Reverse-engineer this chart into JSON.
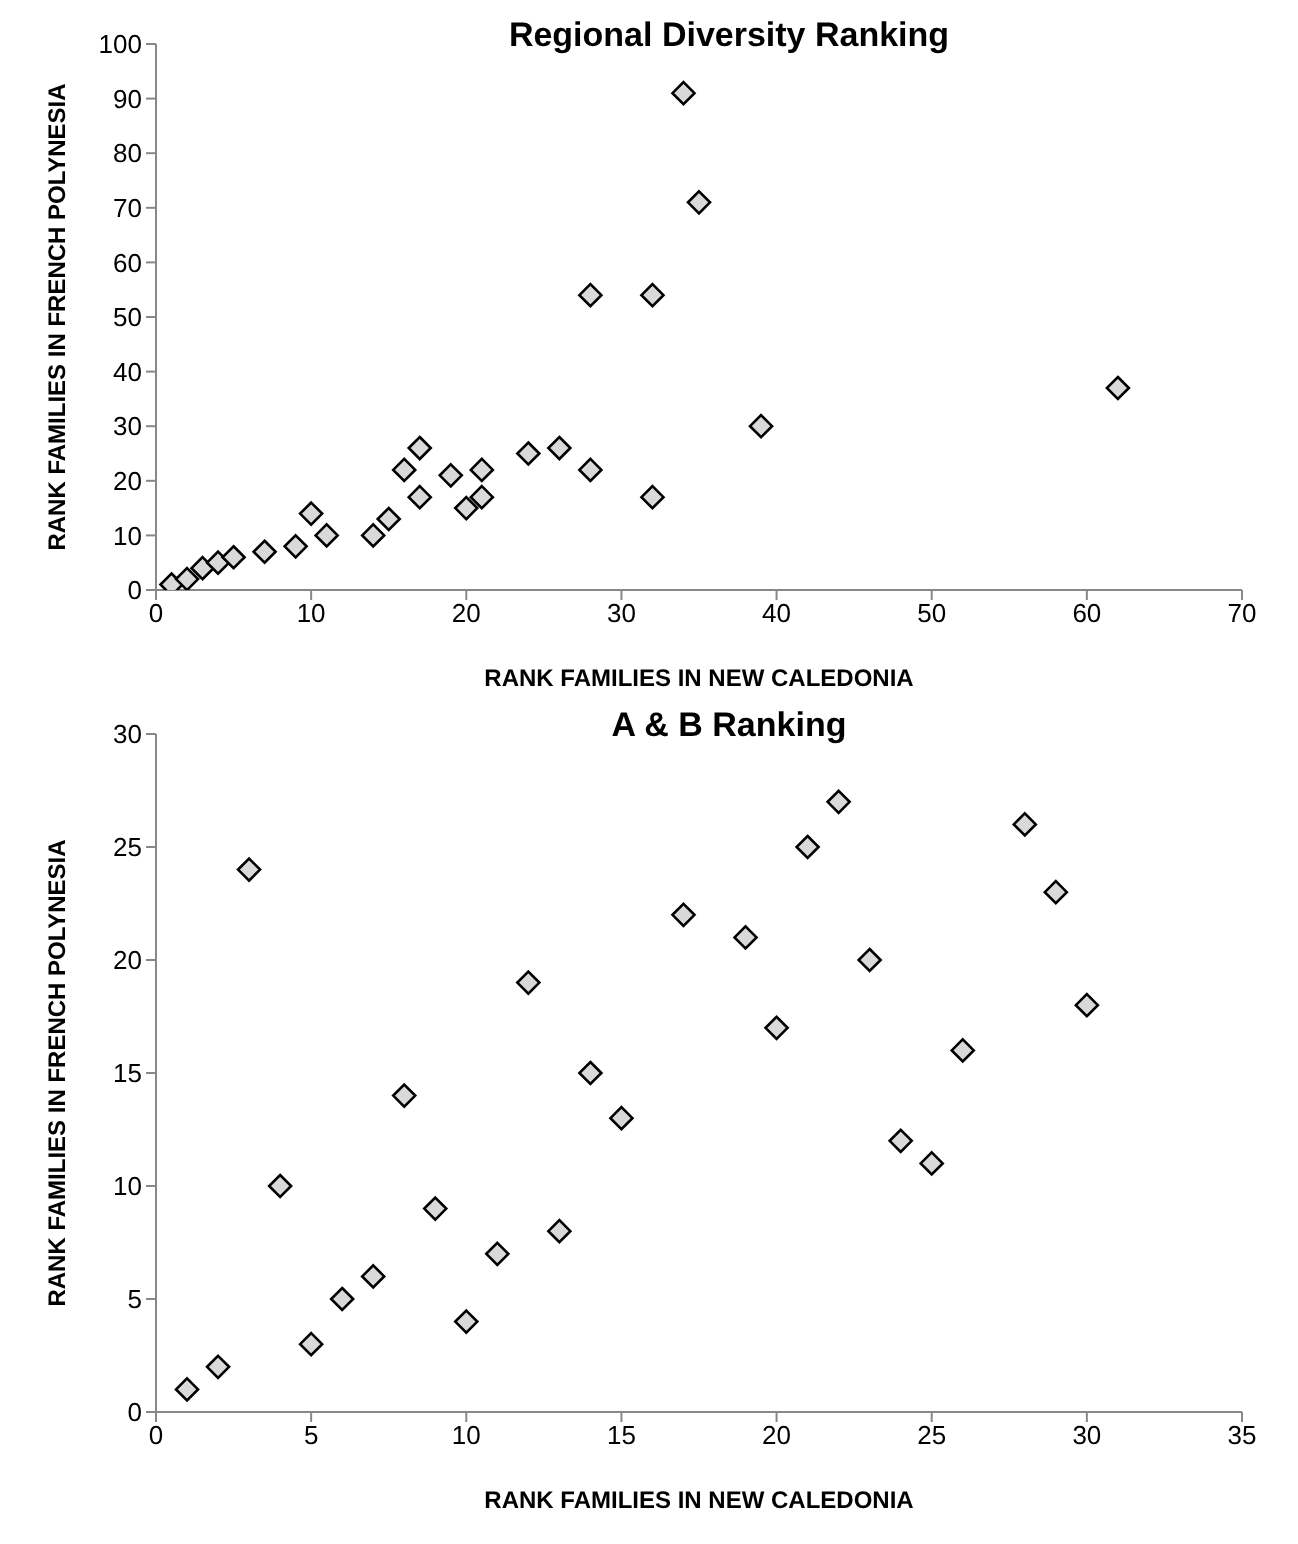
{
  "chart_data": [
    {
      "type": "scatter",
      "title": "Regional Diversity Ranking",
      "xlabel": "RANK FAMILIES IN NEW CALEDONIA",
      "ylabel": "RANK FAMILIES IN FRENCH  POLYNESIA",
      "x": [
        1,
        2,
        3,
        4,
        5,
        7,
        9,
        10,
        11,
        14,
        15,
        16,
        17,
        17,
        19,
        20,
        21,
        21,
        24,
        26,
        28,
        28,
        32,
        32,
        34,
        35,
        39,
        62
      ],
      "values": [
        1,
        2,
        4,
        5,
        6,
        7,
        8,
        14,
        10,
        10,
        13,
        22,
        26,
        17,
        21,
        15,
        22,
        17,
        25,
        26,
        54,
        22,
        54,
        17,
        91,
        71,
        30,
        37
      ],
      "color": "#d9d9d9",
      "marker": "diamond",
      "grid": false,
      "xlim": [
        0,
        70
      ],
      "xticks": [
        0,
        10,
        20,
        30,
        40,
        50,
        60,
        70
      ],
      "ylim": [
        0,
        100
      ],
      "yticks": [
        0,
        10,
        20,
        30,
        40,
        50,
        60,
        70,
        80,
        90,
        100
      ]
    },
    {
      "type": "scatter",
      "title": "A & B Ranking",
      "xlabel": "RANK FAMILIES IN NEW CALEDONIA",
      "ylabel": "RANK FAMILIES IN FRENCH  POLYNESIA",
      "x": [
        1,
        2,
        3,
        4,
        5,
        6,
        7,
        8,
        9,
        10,
        11,
        12,
        13,
        14,
        15,
        17,
        19,
        20,
        21,
        22,
        23,
        24,
        25,
        26,
        28,
        29,
        30
      ],
      "values": [
        1,
        2,
        24,
        10,
        3,
        5,
        6,
        14,
        9,
        4,
        7,
        19,
        8,
        15,
        13,
        22,
        21,
        17,
        25,
        27,
        20,
        12,
        11,
        16,
        26,
        23,
        18
      ],
      "color": "#d9d9d9",
      "marker": "diamond",
      "grid": false,
      "xlim": [
        0,
        35
      ],
      "xticks": [
        0,
        5,
        10,
        15,
        20,
        25,
        30,
        35
      ],
      "ylim": [
        0,
        30
      ],
      "yticks": [
        0,
        5,
        10,
        15,
        20,
        25,
        30
      ]
    }
  ]
}
